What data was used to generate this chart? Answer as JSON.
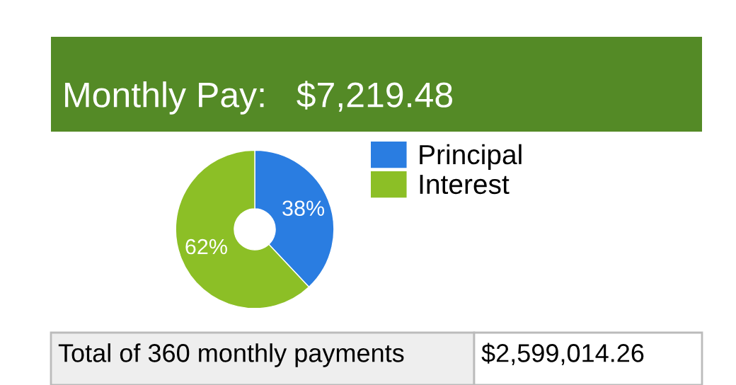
{
  "chart_data": {
    "type": "donut",
    "title": "Monthly Pay:   $7,219.48",
    "categories": [
      "Principal",
      "Interest"
    ],
    "values": [
      38,
      62
    ],
    "colors": [
      "#2a7de1",
      "#8cbf26"
    ],
    "value_labels": [
      "38%",
      "62%"
    ],
    "legend": "right",
    "annotations": [
      "Total of 360 monthly payments",
      "$2,599,014.26"
    ]
  }
}
